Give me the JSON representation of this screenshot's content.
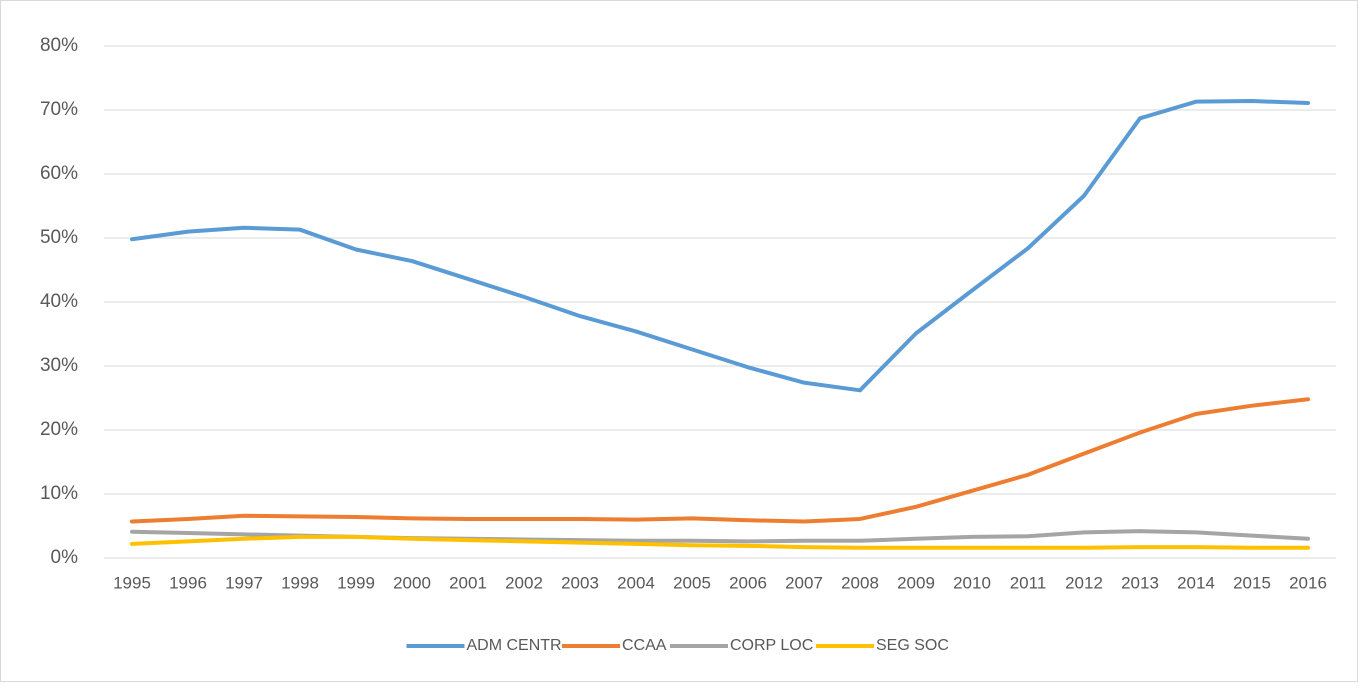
{
  "chart_data": {
    "type": "line",
    "categories": [
      "1995",
      "1996",
      "1997",
      "1998",
      "1999",
      "2000",
      "2001",
      "2002",
      "2003",
      "2004",
      "2005",
      "2006",
      "2007",
      "2008",
      "2009",
      "2010",
      "2011",
      "2012",
      "2013",
      "2014",
      "2015",
      "2016"
    ],
    "series": [
      {
        "name": "ADM CENTR",
        "color": "#5b9bd5",
        "values": [
          49.8,
          51,
          51.6,
          51.3,
          48.2,
          46.4,
          43.6,
          40.8,
          37.8,
          35.4,
          32.6,
          29.8,
          27.4,
          26.2,
          35.1,
          41.8,
          48.4,
          56.6,
          68.7,
          71.3,
          71.4,
          71.1
        ]
      },
      {
        "name": "CCAA",
        "color": "#ed7d31",
        "values": [
          5.7,
          6.1,
          6.6,
          6.5,
          6.4,
          6.2,
          6.1,
          6.1,
          6.1,
          6.0,
          6.2,
          5.9,
          5.7,
          6.1,
          8.0,
          10.5,
          13.0,
          16.3,
          19.6,
          22.5,
          23.8,
          24.8
        ]
      },
      {
        "name": "CORP LOC",
        "color": "#a5a5a5",
        "values": [
          4.1,
          3.9,
          3.7,
          3.5,
          3.3,
          3.1,
          3.0,
          2.9,
          2.8,
          2.7,
          2.7,
          2.6,
          2.7,
          2.7,
          3.0,
          3.3,
          3.4,
          4.0,
          4.2,
          4.0,
          3.5,
          3.0
        ]
      },
      {
        "name": "SEG SOC",
        "color": "#ffc000",
        "values": [
          2.2,
          2.6,
          3.0,
          3.3,
          3.3,
          3.0,
          2.8,
          2.6,
          2.4,
          2.2,
          2.0,
          1.9,
          1.7,
          1.6,
          1.6,
          1.6,
          1.6,
          1.6,
          1.7,
          1.7,
          1.6,
          1.6
        ]
      }
    ],
    "ylim": [
      0,
      80
    ],
    "yticks": [
      {
        "value": 0,
        "label": "0%"
      },
      {
        "value": 10,
        "label": "10%"
      },
      {
        "value": 20,
        "label": "20%"
      },
      {
        "value": 30,
        "label": "30%"
      },
      {
        "value": 40,
        "label": "40%"
      },
      {
        "value": 50,
        "label": "50%"
      },
      {
        "value": 60,
        "label": "60%"
      },
      {
        "value": 70,
        "label": "70%"
      },
      {
        "value": 80,
        "label": "80%"
      }
    ],
    "grid": true,
    "legend": "bottom"
  }
}
